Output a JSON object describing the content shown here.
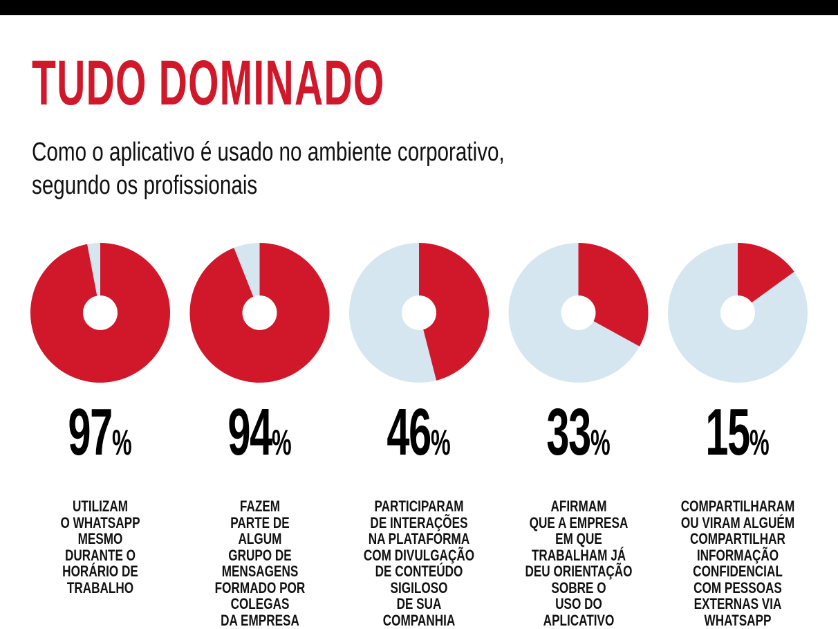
{
  "title": "TUDO DOMINADO",
  "subtitle_lines": [
    "Como o aplicativo é usado no ambiente corporativo,",
    "segundo os profissionais"
  ],
  "colors": {
    "accent": "#d0182a",
    "remainder": "#d6e6f0",
    "text": "#111111"
  },
  "chart_data": {
    "type": "pie",
    "title": "TUDO DOMINADO",
    "subtitle": "Como o aplicativo é usado no ambiente corporativo, segundo os profissionais",
    "unit": "%",
    "items": [
      {
        "value": 97,
        "display": "97",
        "label_lines": [
          "UTILIZAM",
          "O WHATSAPP",
          "MESMO",
          "DURANTE O",
          "HORÁRIO DE",
          "TRABALHO"
        ]
      },
      {
        "value": 94,
        "display": "94",
        "label_lines": [
          "FAZEM",
          "PARTE DE",
          "ALGUM",
          "GRUPO DE",
          "MENSAGENS",
          "FORMADO POR",
          "COLEGAS",
          "DA EMPRESA"
        ]
      },
      {
        "value": 46,
        "display": "46",
        "label_lines": [
          "PARTICIPARAM",
          "DE INTERAÇÕES",
          "NA PLATAFORMA",
          "COM DIVULGAÇÃO",
          "DE CONTEÚDO",
          "SIGILOSO",
          "DE SUA",
          "COMPANHIA"
        ]
      },
      {
        "value": 33,
        "display": "33",
        "label_lines": [
          "AFIRMAM",
          "QUE A EMPRESA",
          "EM QUE",
          "TRABALHAM JÁ",
          "DEU ORIENTAÇÃO",
          "SOBRE O",
          "USO DO",
          "APLICATIVO"
        ]
      },
      {
        "value": 15,
        "display": "15",
        "label_lines": [
          "COMPARTILHARAM",
          "OU VIRAM ALGUÉM",
          "COMPARTILHAR",
          "INFORMAÇÃO",
          "CONFIDENCIAL",
          "COM PESSOAS",
          "EXTERNAS VIA",
          "WHATSAPP"
        ]
      }
    ]
  }
}
